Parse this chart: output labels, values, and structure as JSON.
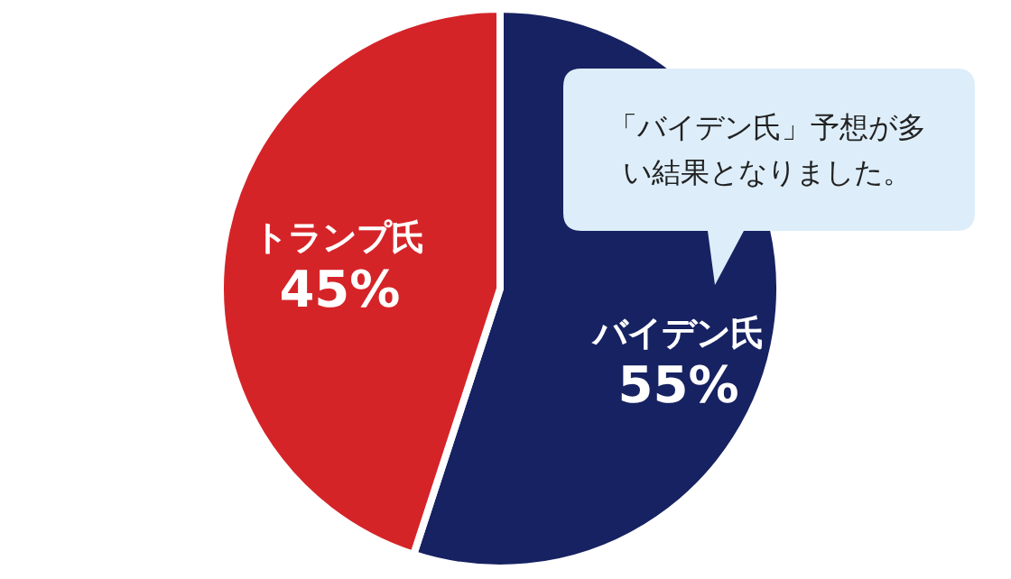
{
  "chart_data": {
    "type": "pie",
    "categories": [
      "バイデン氏",
      "トランプ氏"
    ],
    "values": [
      55,
      45
    ],
    "colors": [
      "#172262",
      "#d52428"
    ],
    "value_labels": [
      "55%",
      "45%"
    ],
    "annotations": [
      "「バイデン氏」予想が多い結果となりました。"
    ]
  }
}
